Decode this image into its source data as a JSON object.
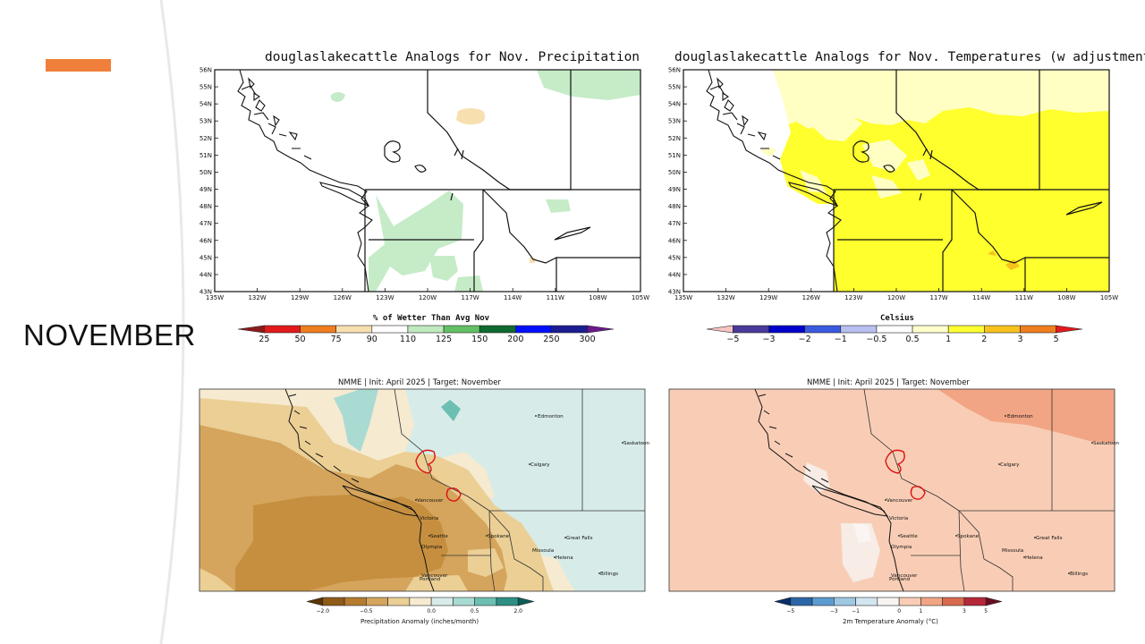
{
  "slide": {
    "month_label": "NOVEMBER",
    "accent_color": "#ef7f3a"
  },
  "analog_precip": {
    "title": "douglaslakecattle Analogs for Nov. Precipitation",
    "colorbar_title": "% of Wetter Than Avg Nov",
    "colorbar_ticks": [
      "25",
      "50",
      "75",
      "90",
      "110",
      "125",
      "150",
      "200",
      "250",
      "300"
    ],
    "colorbar_colors": [
      "#8c1a1a",
      "#e21a1c",
      "#f07d1e",
      "#f7dfb0",
      "#ffffff",
      "#bfe9bf",
      "#63c065",
      "#0e6a2e",
      "#0010ff",
      "#1c1c93",
      "#6a1a8a"
    ]
  },
  "analog_temp": {
    "title": "douglaslakecattle Analogs for Nov. Temperatures (w adjustment)",
    "colorbar_title": "Celsius",
    "colorbar_ticks": [
      "−5",
      "−3",
      "−2",
      "−1",
      "−0.5",
      "0.5",
      "1",
      "2",
      "3",
      "5"
    ],
    "colorbar_colors": [
      "#f9c3c3",
      "#4a3a9a",
      "#0000cc",
      "#3a5ae0",
      "#b9c0f0",
      "#ffffff",
      "#ffffcc",
      "#ffff33",
      "#f7c21c",
      "#f07d1e",
      "#e21a1c"
    ]
  },
  "axes": {
    "lat_labels": [
      "56N",
      "55N",
      "54N",
      "53N",
      "52N",
      "51N",
      "50N",
      "49N",
      "48N",
      "47N",
      "46N",
      "45N",
      "44N",
      "43N"
    ],
    "lon_labels": [
      "135W",
      "132W",
      "129W",
      "126W",
      "123W",
      "120W",
      "117W",
      "114W",
      "111W",
      "108W",
      "105W"
    ]
  },
  "nmme_precip": {
    "title": "NMME | Init: April 2025 | Target: November",
    "colorbar_label": "Precipitation Anomaly (inches/month)",
    "colorbar_ticks": [
      "−2.0",
      "−0.5",
      "0.0",
      "0.5",
      "2.0"
    ],
    "colorbar_colors": [
      "#5b3407",
      "#8e5b18",
      "#b57b2e",
      "#d5a55d",
      "#ebcf95",
      "#f6ead0",
      "#d7ece9",
      "#a9dbd3",
      "#6cbfb1",
      "#2e8f84",
      "#0b5e57"
    ]
  },
  "nmme_temp": {
    "title": "NMME | Init: April 2025 | Target: November",
    "colorbar_label": "2m Temperature Anomaly (°C)",
    "colorbar_ticks": [
      "−5",
      "−3",
      "−1",
      "0",
      "1",
      "3",
      "5"
    ],
    "colorbar_colors": [
      "#0b2e6a",
      "#2c66a8",
      "#5b9bd0",
      "#9ec8e2",
      "#d3e6f0",
      "#f7f4f2",
      "#f9cdb5",
      "#f2a585",
      "#d9694f",
      "#b5283a",
      "#6b0d22"
    ]
  },
  "cities": {
    "edmonton": "Edmonton",
    "saskatoon": "Saskatoon",
    "calgary": "Calgary",
    "vancouver": "Vancouver",
    "victoria": "Victoria",
    "seattle": "Seattle",
    "olympia": "Olympia",
    "spokane": "Spokane",
    "great_falls": "Great Falls",
    "missoula": "Missoula",
    "helena": "Helena",
    "billings": "Billings",
    "portland": "Portland",
    "vancouver_wa": "Vancouver"
  }
}
